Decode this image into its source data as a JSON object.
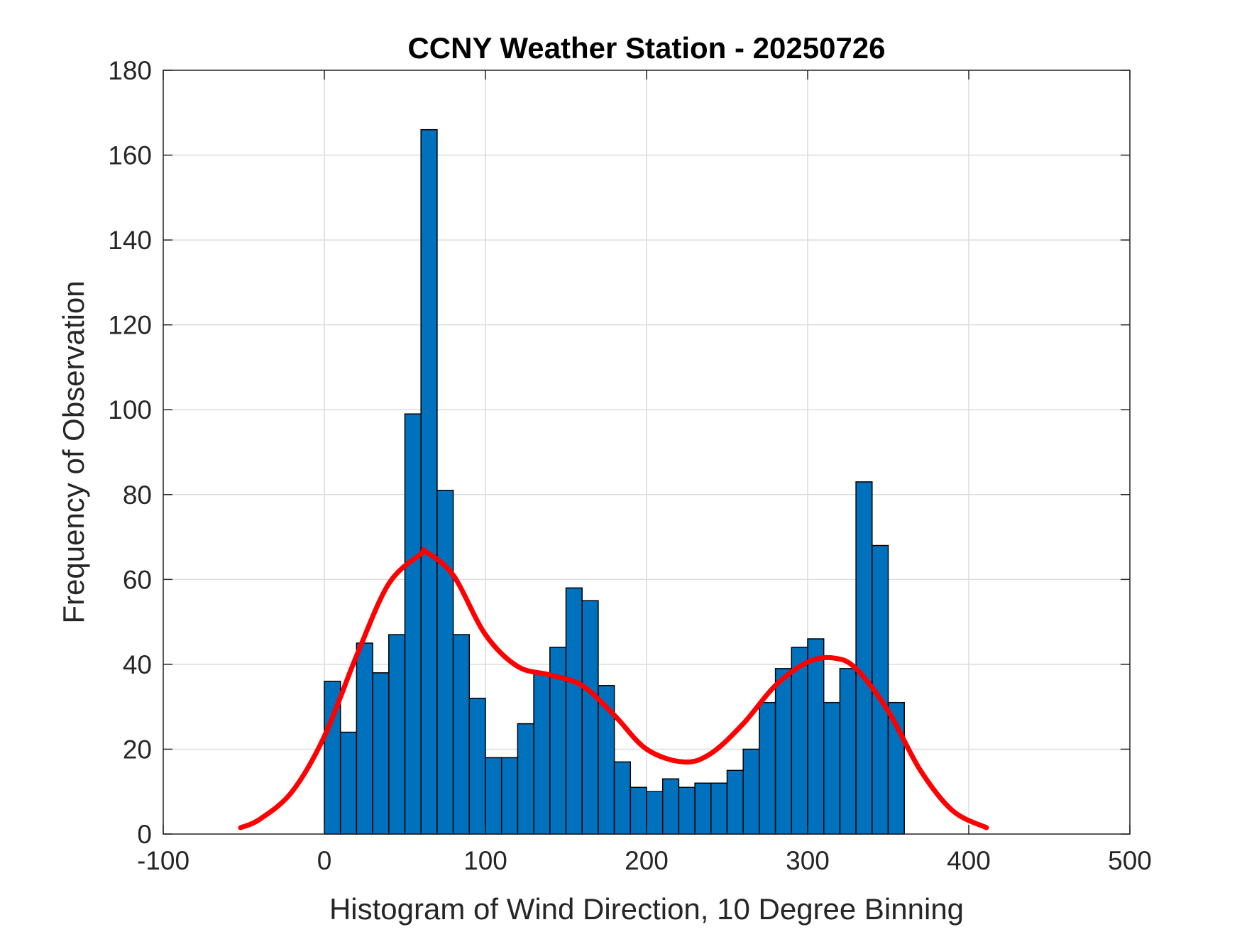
{
  "chart_data": {
    "type": "bar",
    "title": "CCNY Weather Station - 20250726",
    "xlabel": "Histogram of Wind Direction, 10 Degree Binning",
    "ylabel": "Frequency of Observation",
    "xlim": [
      -100,
      500
    ],
    "ylim": [
      0,
      180
    ],
    "x_ticks": [
      -100,
      0,
      100,
      200,
      300,
      400,
      500
    ],
    "y_ticks": [
      0,
      20,
      40,
      60,
      80,
      100,
      120,
      140,
      160,
      180
    ],
    "grid": true,
    "bin_width": 10,
    "bin_edges_start": [
      0,
      10,
      20,
      30,
      40,
      50,
      60,
      70,
      80,
      90,
      100,
      110,
      120,
      130,
      140,
      150,
      160,
      170,
      180,
      190,
      200,
      210,
      220,
      230,
      240,
      250,
      260,
      270,
      280,
      290,
      300,
      310,
      320,
      330,
      340,
      350
    ],
    "values": [
      36,
      24,
      45,
      38,
      47,
      99,
      166,
      81,
      47,
      32,
      18,
      18,
      26,
      38,
      44,
      58,
      55,
      35,
      17,
      11,
      10,
      13,
      11,
      12,
      12,
      15,
      20,
      31,
      39,
      44,
      46,
      31,
      39,
      83,
      68,
      31
    ],
    "bar_color": "#0072BD",
    "fit_curve": {
      "color": "#FF0000",
      "x": [
        -52,
        -40,
        -20,
        0,
        20,
        40,
        60,
        63,
        80,
        100,
        120,
        140,
        160,
        180,
        200,
        223,
        240,
        260,
        280,
        300,
        316,
        330,
        350,
        370,
        390,
        411
      ],
      "y": [
        1.5,
        3.5,
        10,
        23,
        42,
        59,
        66,
        66.5,
        61,
        47,
        39.5,
        37.5,
        35,
        28,
        20,
        17,
        19,
        26,
        35,
        40.5,
        41.5,
        39,
        29,
        15,
        5.5,
        1.5
      ]
    }
  }
}
